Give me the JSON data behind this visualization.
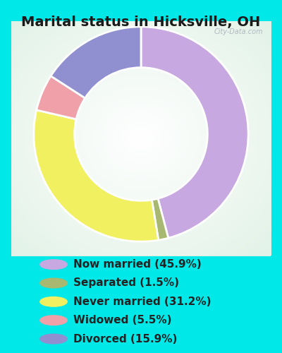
{
  "title": "Marital status in Hicksville, OH",
  "slices": [
    {
      "label": "Now married (45.9%)",
      "value": 45.9,
      "color": "#c8a8e0"
    },
    {
      "label": "Separated (1.5%)",
      "value": 1.5,
      "color": "#a8b870"
    },
    {
      "label": "Never married (31.2%)",
      "value": 31.2,
      "color": "#f0f060"
    },
    {
      "label": "Widowed (5.5%)",
      "value": 5.5,
      "color": "#f0a0a8"
    },
    {
      "label": "Divorced (15.9%)",
      "value": 15.9,
      "color": "#9090d0"
    }
  ],
  "bg_outer": "#00e8e8",
  "bg_inner_rect": "#d8ece0",
  "title_fontsize": 14,
  "legend_fontsize": 11,
  "start_angle": 90,
  "watermark": "City-Data.com"
}
